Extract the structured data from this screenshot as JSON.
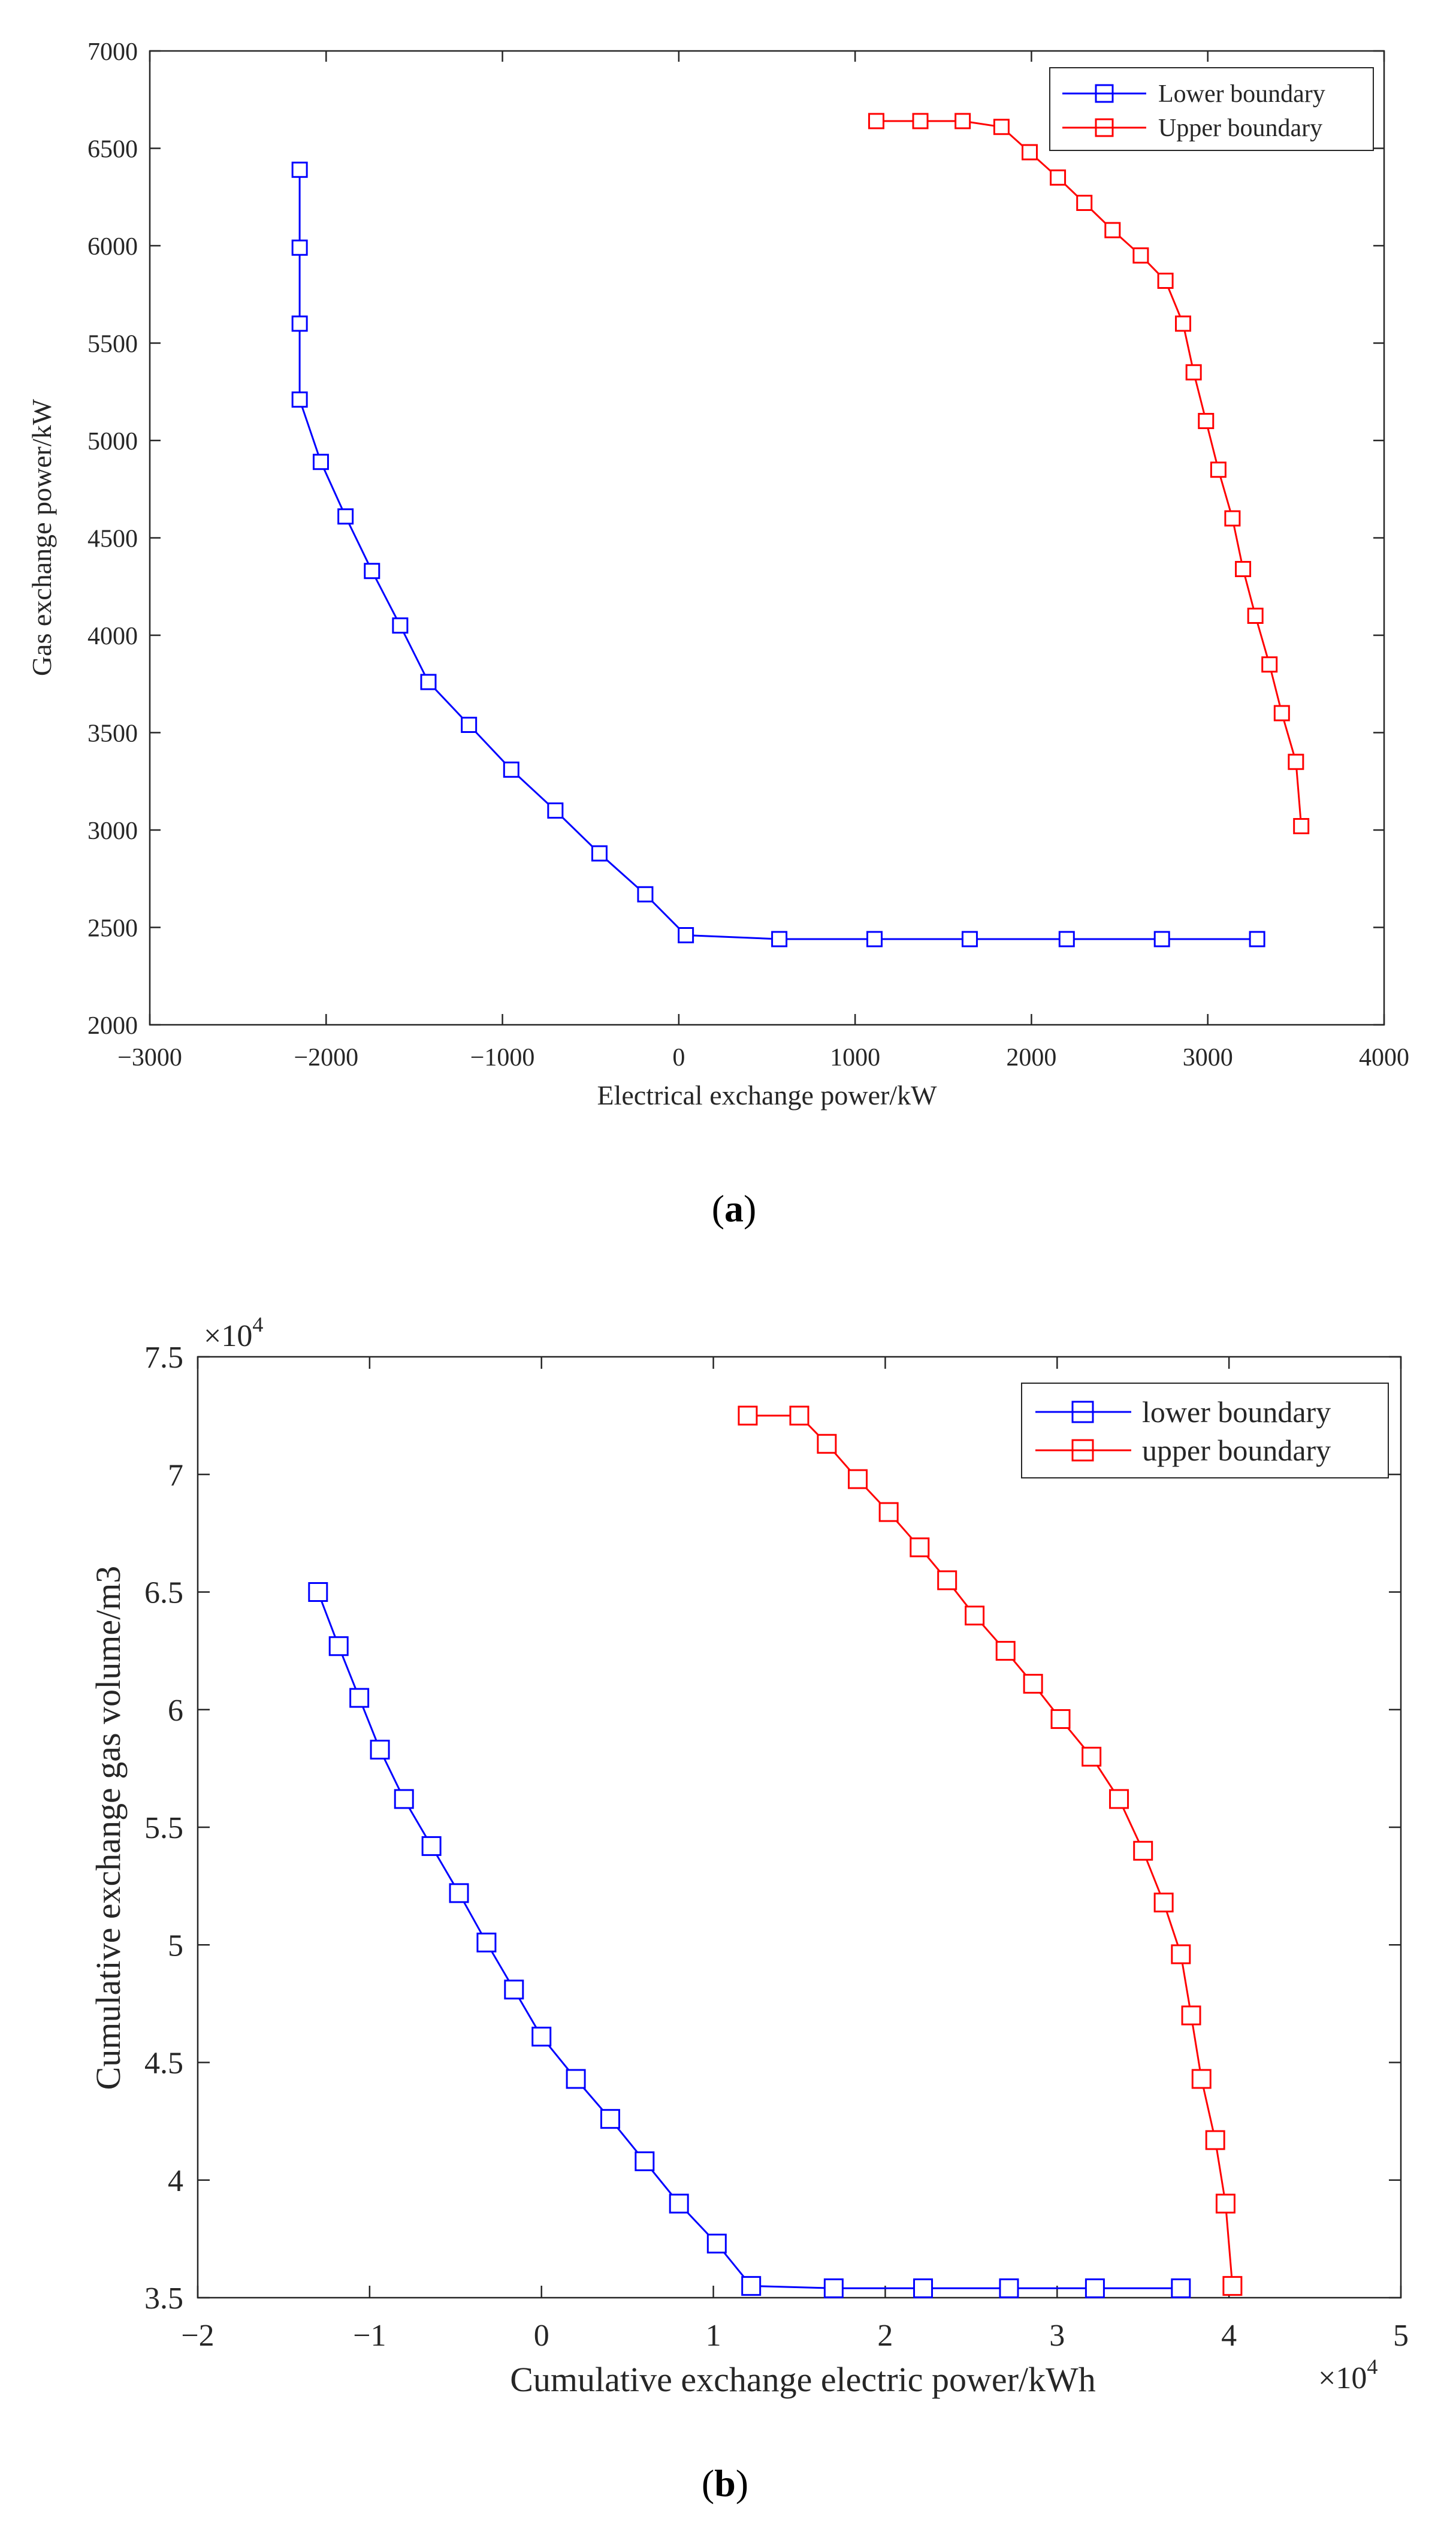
{
  "chart_data": [
    {
      "type": "line",
      "panel_label": "a",
      "title": "",
      "xlabel": "Electrical exchange power/kW",
      "ylabel": "Gas exchange power/kW",
      "xlim": [
        -3000,
        4000
      ],
      "ylim": [
        2000,
        7000
      ],
      "xticks": [
        -3000,
        -2000,
        -1000,
        0,
        1000,
        2000,
        3000,
        4000
      ],
      "yticks": [
        2000,
        2500,
        3000,
        3500,
        4000,
        4500,
        5000,
        5500,
        6000,
        6500,
        7000
      ],
      "xtick_labels": [
        "−3000",
        "−2000",
        "−1000",
        "0",
        "1000",
        "2000",
        "3000",
        "4000"
      ],
      "ytick_labels": [
        "2000",
        "2500",
        "3000",
        "3500",
        "4000",
        "4500",
        "5000",
        "5500",
        "6000",
        "6500",
        "7000"
      ],
      "legend_position": "top-right",
      "series": [
        {
          "name": "Lower boundary",
          "color": "#0000ff",
          "marker": "square",
          "x": [
            -2150,
            -2150,
            -2150,
            -2150,
            -2030,
            -1890,
            -1740,
            -1580,
            -1420,
            -1190,
            -950,
            -700,
            -450,
            -190,
            40,
            570,
            1110,
            1650,
            2200,
            2740,
            3280
          ],
          "y": [
            6390,
            5990,
            5600,
            5210,
            4890,
            4610,
            4330,
            4050,
            3760,
            3540,
            3310,
            3100,
            2880,
            2670,
            2460,
            2440,
            2440,
            2440,
            2440,
            2440,
            2440
          ]
        },
        {
          "name": "Upper boundary",
          "color": "#ff0000",
          "marker": "square",
          "x": [
            1120,
            1370,
            1610,
            1830,
            1990,
            2150,
            2300,
            2460,
            2620,
            2760,
            2860,
            2920,
            2990,
            3060,
            3140,
            3200,
            3270,
            3350,
            3420,
            3500,
            3530
          ],
          "y": [
            6640,
            6640,
            6640,
            6610,
            6480,
            6350,
            6220,
            6080,
            5950,
            5820,
            5600,
            5350,
            5100,
            4850,
            4600,
            4340,
            4100,
            3850,
            3600,
            3350,
            3020
          ]
        }
      ]
    },
    {
      "type": "line",
      "panel_label": "b",
      "title": "",
      "xlabel": "Cumulative exchange electric power/kWh",
      "ylabel": "Cumulative exchange gas volume/m3",
      "xlim": [
        -2,
        5
      ],
      "ylim": [
        3.5,
        7.5
      ],
      "x_multiplier": "×10",
      "x_multiplier_exp": "4",
      "y_multiplier": "×10",
      "y_multiplier_exp": "4",
      "xticks": [
        -2,
        -1,
        0,
        1,
        2,
        3,
        4,
        5
      ],
      "yticks": [
        3.5,
        4,
        4.5,
        5,
        5.5,
        6,
        6.5,
        7,
        7.5
      ],
      "xtick_labels": [
        "−2",
        "−1",
        "0",
        "1",
        "2",
        "3",
        "4",
        "5"
      ],
      "ytick_labels": [
        "3.5",
        "4",
        "4.5",
        "5",
        "5.5",
        "6",
        "6.5",
        "7",
        "7.5"
      ],
      "legend_position": "top-right",
      "series": [
        {
          "name": "lower boundary",
          "color": "#0000ff",
          "marker": "square",
          "x": [
            -1.3,
            -1.18,
            -1.06,
            -0.94,
            -0.8,
            -0.64,
            -0.48,
            -0.32,
            -0.16,
            0.0,
            0.2,
            0.4,
            0.6,
            0.8,
            1.02,
            1.22,
            1.7,
            2.22,
            2.72,
            3.22,
            3.72
          ],
          "y": [
            6.5,
            6.27,
            6.05,
            5.83,
            5.62,
            5.42,
            5.22,
            5.01,
            4.81,
            4.61,
            4.43,
            4.26,
            4.08,
            3.9,
            3.73,
            3.55,
            3.54,
            3.54,
            3.54,
            3.54,
            3.54
          ]
        },
        {
          "name": "upper boundary",
          "color": "#ff0000",
          "marker": "square",
          "x": [
            1.2,
            1.5,
            1.66,
            1.84,
            2.02,
            2.2,
            2.36,
            2.52,
            2.7,
            2.86,
            3.02,
            3.2,
            3.36,
            3.5,
            3.62,
            3.72,
            3.78,
            3.84,
            3.92,
            3.98,
            4.02
          ],
          "y": [
            7.25,
            7.25,
            7.13,
            6.98,
            6.84,
            6.69,
            6.55,
            6.4,
            6.25,
            6.11,
            5.96,
            5.8,
            5.62,
            5.4,
            5.18,
            4.96,
            4.7,
            4.43,
            4.17,
            3.9,
            3.55
          ]
        }
      ]
    }
  ]
}
